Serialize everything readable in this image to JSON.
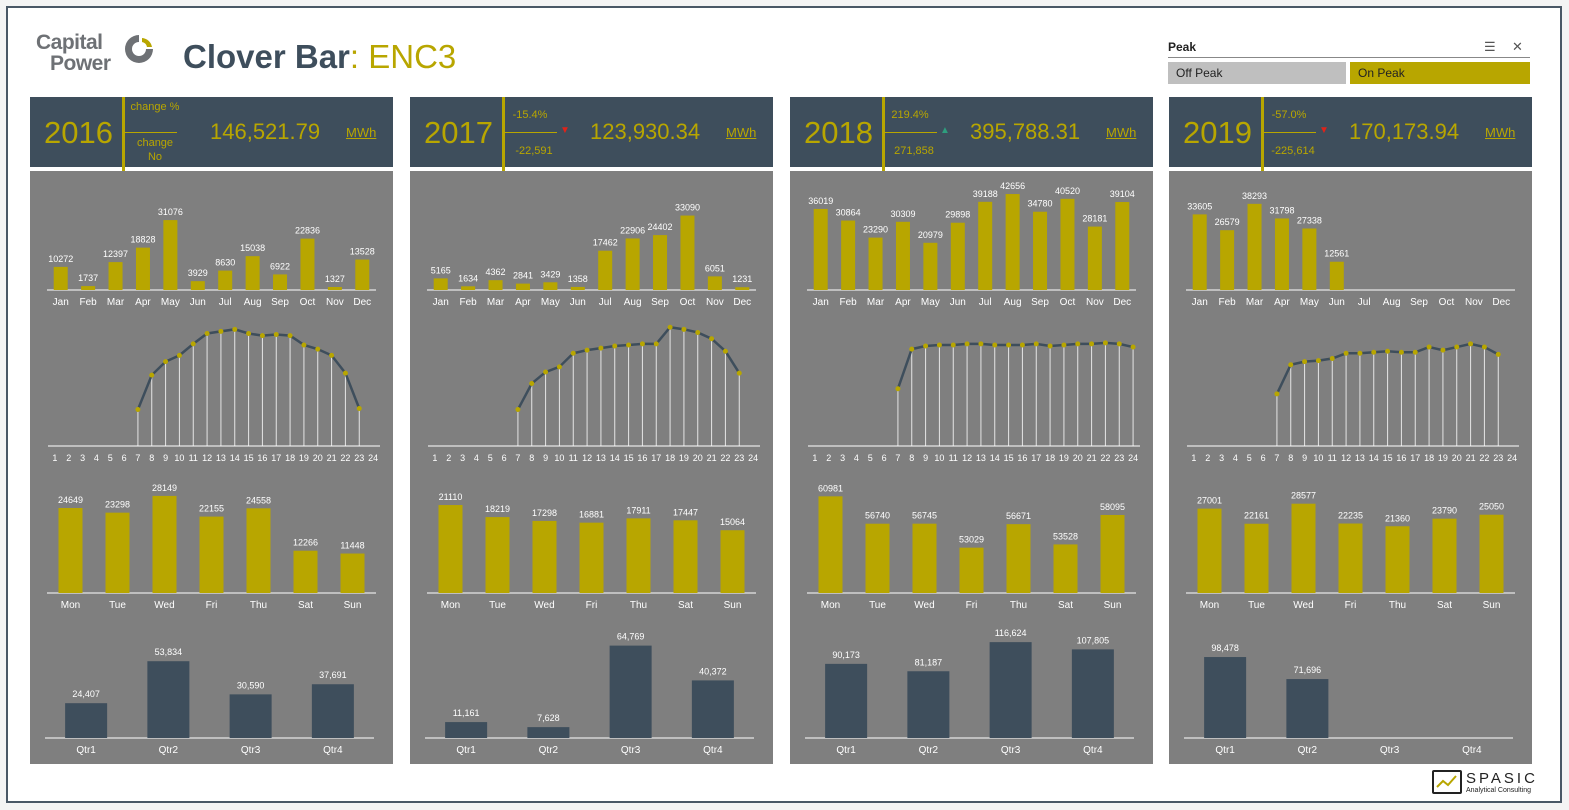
{
  "header": {
    "logo_line1": "Capital",
    "logo_line2": "Power",
    "title_main": "Clover Bar",
    "title_sep": ": ",
    "title_sub": "ENC3"
  },
  "slicer": {
    "title": "Peak",
    "multi_select_icon": "multi-select-icon",
    "clear_filter_icon": "clear-filter-icon",
    "options": [
      {
        "label": "Off Peak",
        "selected": false
      },
      {
        "label": "On Peak",
        "selected": true
      }
    ]
  },
  "footer": {
    "brand": "SPASIC",
    "tagline": "Analytical Consulting"
  },
  "colors": {
    "navy": "#3e4e5c",
    "gold": "#b8a600",
    "panel": "#7f7f7f",
    "up": "#2e9e7e",
    "down": "#e0231a"
  },
  "cards": [
    {
      "year": "2016",
      "change_pct": "change %",
      "change_no": "change No",
      "arrow": "",
      "total": "146,521.79",
      "unit": "MWh"
    },
    {
      "year": "2017",
      "change_pct": "-15.4%",
      "change_no": "-22,591",
      "arrow": "down",
      "total": "123,930.34",
      "unit": "MWh"
    },
    {
      "year": "2018",
      "change_pct": "219.4%",
      "change_no": "271,858",
      "arrow": "up",
      "total": "395,788.31",
      "unit": "MWh"
    },
    {
      "year": "2019",
      "change_pct": "-57.0%",
      "change_no": "-225,614",
      "arrow": "down",
      "total": "170,173.94",
      "unit": "MWh"
    }
  ],
  "chart_data": [
    {
      "type": "bar",
      "year": "2016",
      "name": "monthly",
      "categories": [
        "Jan",
        "Feb",
        "Mar",
        "Apr",
        "May",
        "Jun",
        "Jul",
        "Aug",
        "Sep",
        "Oct",
        "Nov",
        "Dec"
      ],
      "values": [
        10272,
        1737,
        12397,
        18828,
        31076,
        3929,
        8630,
        15038,
        6922,
        22836,
        1327,
        13528
      ],
      "labels": [
        "10272",
        "1737",
        "12397",
        "18828",
        "31076",
        "3929",
        "8630",
        "15038",
        "6922",
        "22836",
        "1327",
        "13528"
      ]
    },
    {
      "type": "bar",
      "year": "2017",
      "name": "monthly",
      "categories": [
        "Jan",
        "Feb",
        "Mar",
        "Apr",
        "May",
        "Jun",
        "Jul",
        "Aug",
        "Sep",
        "Oct",
        "Nov",
        "Dec"
      ],
      "values": [
        5165,
        1634,
        4362,
        2841,
        3429,
        1358,
        17462,
        22906,
        24402,
        33090,
        6051,
        1231
      ],
      "labels": [
        "5165",
        "1634",
        "4362",
        "2841",
        "3429",
        "1358",
        "17462",
        "22906",
        "24402",
        "33090",
        "6051",
        "1231"
      ]
    },
    {
      "type": "bar",
      "year": "2018",
      "name": "monthly",
      "categories": [
        "Jan",
        "Feb",
        "Mar",
        "Apr",
        "May",
        "Jun",
        "Jul",
        "Aug",
        "Sep",
        "Oct",
        "Nov",
        "Dec"
      ],
      "values": [
        36019,
        30864,
        23290,
        30309,
        20979,
        29898,
        39188,
        42656,
        34780,
        40520,
        28181,
        39104
      ],
      "labels": [
        "36019",
        "30864",
        "23290",
        "30309",
        "20979",
        "29898",
        "39188",
        "42656",
        "34780",
        "40520",
        "28181",
        "39104"
      ]
    },
    {
      "type": "bar",
      "year": "2019",
      "name": "monthly",
      "categories": [
        "Jan",
        "Feb",
        "Mar",
        "Apr",
        "May",
        "Jun",
        "Jul",
        "Aug",
        "Sep",
        "Oct",
        "Nov",
        "Dec"
      ],
      "values": [
        33605,
        26579,
        38293,
        31798,
        27338,
        12561,
        null,
        null,
        null,
        null,
        null,
        null
      ],
      "labels": [
        "33605",
        "26579",
        "38293",
        "31798",
        "27338",
        "12561",
        "",
        "",
        "",
        "",
        "",
        ""
      ]
    },
    {
      "type": "line",
      "year": "2016",
      "name": "hourly",
      "x": [
        "1",
        "2",
        "3",
        "4",
        "5",
        "6",
        "7",
        "8",
        "9",
        "10",
        "11",
        "12",
        "13",
        "14",
        "15",
        "16",
        "17",
        "18",
        "19",
        "20",
        "21",
        "22",
        "23",
        "24"
      ],
      "values": [
        null,
        null,
        null,
        null,
        null,
        null,
        35,
        68,
        81,
        87,
        98,
        108,
        110,
        112,
        108,
        106,
        107,
        106,
        97,
        93,
        87,
        70,
        36,
        null
      ]
    },
    {
      "type": "line",
      "year": "2017",
      "name": "hourly",
      "x": [
        "1",
        "2",
        "3",
        "4",
        "5",
        "6",
        "7",
        "8",
        "9",
        "10",
        "11",
        "12",
        "13",
        "14",
        "15",
        "16",
        "17",
        "18",
        "19",
        "20",
        "21",
        "22",
        "23",
        "24"
      ],
      "values": [
        null,
        null,
        null,
        null,
        null,
        null,
        35,
        60,
        71,
        76,
        89,
        92,
        94,
        96,
        97,
        98,
        98,
        114,
        112,
        109,
        103,
        91,
        70,
        null
      ]
    },
    {
      "type": "line",
      "year": "2018",
      "name": "hourly",
      "x": [
        "1",
        "2",
        "3",
        "4",
        "5",
        "6",
        "7",
        "8",
        "9",
        "10",
        "11",
        "12",
        "13",
        "14",
        "15",
        "16",
        "17",
        "18",
        "19",
        "20",
        "21",
        "22",
        "23",
        "24"
      ],
      "values": [
        null,
        null,
        null,
        null,
        null,
        null,
        55,
        93,
        96,
        97,
        97,
        98,
        98,
        97,
        97,
        97,
        98,
        96,
        97,
        98,
        98,
        99,
        98,
        95
      ]
    },
    {
      "type": "line",
      "year": "2019",
      "name": "hourly",
      "x": [
        "1",
        "2",
        "3",
        "4",
        "5",
        "6",
        "7",
        "8",
        "9",
        "10",
        "11",
        "12",
        "13",
        "14",
        "15",
        "16",
        "17",
        "18",
        "19",
        "20",
        "21",
        "22",
        "23",
        "24"
      ],
      "values": [
        null,
        null,
        null,
        null,
        null,
        null,
        50,
        78,
        81,
        82,
        84,
        89,
        89,
        90,
        91,
        90,
        90,
        95,
        92,
        95,
        98,
        95,
        88,
        null
      ]
    },
    {
      "type": "bar",
      "year": "2016",
      "name": "weekday",
      "categories": [
        "Mon",
        "Tue",
        "Wed",
        "Fri",
        "Thu",
        "Sat",
        "Sun"
      ],
      "values": [
        24649,
        23298,
        28149,
        22155,
        24558,
        12266,
        11448
      ],
      "labels": [
        "24649",
        "23298",
        "28149",
        "22155",
        "24558",
        "12266",
        "11448"
      ]
    },
    {
      "type": "bar",
      "year": "2017",
      "name": "weekday",
      "categories": [
        "Mon",
        "Tue",
        "Wed",
        "Fri",
        "Thu",
        "Sat",
        "Sun"
      ],
      "values": [
        21110,
        18219,
        17298,
        16881,
        17911,
        17447,
        15064
      ],
      "labels": [
        "21110",
        "18219",
        "17298",
        "16881",
        "17911",
        "17447",
        "15064"
      ]
    },
    {
      "type": "bar",
      "year": "2018",
      "name": "weekday",
      "categories": [
        "Mon",
        "Tue",
        "Wed",
        "Fri",
        "Thu",
        "Sat",
        "Sun"
      ],
      "values": [
        60981,
        56740,
        56745,
        53029,
        56671,
        53528,
        58095
      ],
      "labels": [
        "60981",
        "56740",
        "56745",
        "53029",
        "56671",
        "53528",
        "58095"
      ]
    },
    {
      "type": "bar",
      "year": "2019",
      "name": "weekday",
      "categories": [
        "Mon",
        "Tue",
        "Wed",
        "Fri",
        "Thu",
        "Sat",
        "Sun"
      ],
      "values": [
        27001,
        22161,
        28577,
        22235,
        21360,
        23790,
        25050
      ],
      "labels": [
        "27001",
        "22161",
        "28577",
        "22235",
        "21360",
        "23790",
        "25050"
      ]
    },
    {
      "type": "bar",
      "year": "2016",
      "name": "quarterly",
      "categories": [
        "Qtr1",
        "Qtr2",
        "Qtr3",
        "Qtr4"
      ],
      "values": [
        24407,
        53834,
        30590,
        37691
      ],
      "labels": [
        "24,407",
        "53,834",
        "30,590",
        "37,691"
      ]
    },
    {
      "type": "bar",
      "year": "2017",
      "name": "quarterly",
      "categories": [
        "Qtr1",
        "Qtr2",
        "Qtr3",
        "Qtr4"
      ],
      "values": [
        11161,
        7628,
        64769,
        40372
      ],
      "labels": [
        "11,161",
        "7,628",
        "64,769",
        "40,372"
      ]
    },
    {
      "type": "bar",
      "year": "2018",
      "name": "quarterly",
      "categories": [
        "Qtr1",
        "Qtr2",
        "Qtr3",
        "Qtr4"
      ],
      "values": [
        90173,
        81187,
        116624,
        107805
      ],
      "labels": [
        "90,173",
        "81,187",
        "116,624",
        "107,805"
      ]
    },
    {
      "type": "bar",
      "year": "2019",
      "name": "quarterly",
      "categories": [
        "Qtr1",
        "Qtr2",
        "Qtr3",
        "Qtr4"
      ],
      "values": [
        98478,
        71696,
        null,
        null
      ],
      "labels": [
        "98,478",
        "71,696",
        "",
        ""
      ]
    }
  ]
}
